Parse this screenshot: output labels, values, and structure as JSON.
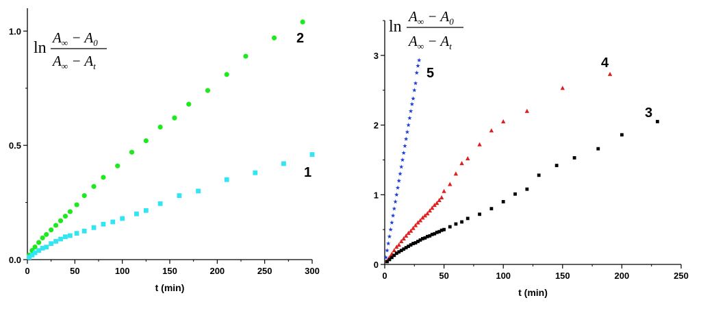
{
  "chart_data": [
    {
      "type": "scatter",
      "xlabel": "t (min)",
      "ylabel": "ln (A∞ − A0)/(A∞ − At)",
      "xlim": [
        0,
        300
      ],
      "ylim": [
        0,
        1.1
      ],
      "x_ticks": [
        "0",
        "50",
        "100",
        "150",
        "200",
        "250",
        "300"
      ],
      "y_ticks": [
        "0.0",
        "0.5",
        "1.0"
      ],
      "y_tick_values": [
        0,
        0.5,
        1.0
      ],
      "x_tick_values": [
        0,
        50,
        100,
        150,
        200,
        250,
        300
      ],
      "grid": false,
      "series": [
        {
          "label": "2",
          "color": "#1ee81e",
          "marker": "circle",
          "x": [
            2,
            5,
            8,
            12,
            16,
            20,
            25,
            30,
            35,
            40,
            45,
            52,
            60,
            70,
            80,
            95,
            110,
            125,
            140,
            155,
            170,
            190,
            210,
            230,
            260,
            290
          ],
          "y": [
            0.02,
            0.04,
            0.055,
            0.075,
            0.095,
            0.11,
            0.13,
            0.15,
            0.17,
            0.19,
            0.21,
            0.24,
            0.28,
            0.32,
            0.36,
            0.41,
            0.47,
            0.52,
            0.58,
            0.62,
            0.68,
            0.74,
            0.81,
            0.89,
            0.97,
            1.04
          ]
        },
        {
          "label": "1",
          "color": "#33e5f2",
          "marker": "square",
          "x": [
            2,
            5,
            8,
            12,
            16,
            20,
            25,
            30,
            35,
            40,
            45,
            52,
            60,
            70,
            80,
            90,
            100,
            115,
            125,
            140,
            160,
            180,
            210,
            240,
            270,
            300
          ],
          "y": [
            0.01,
            0.02,
            0.03,
            0.04,
            0.05,
            0.055,
            0.07,
            0.08,
            0.09,
            0.1,
            0.105,
            0.115,
            0.125,
            0.14,
            0.155,
            0.165,
            0.18,
            0.2,
            0.215,
            0.245,
            0.28,
            0.3,
            0.35,
            0.38,
            0.42,
            0.46
          ]
        }
      ]
    },
    {
      "type": "scatter",
      "xlabel": "t (min)",
      "ylabel": "ln (A∞ − A0)/(A∞ − At)",
      "xlim": [
        0,
        250
      ],
      "ylim": [
        0,
        3.5
      ],
      "x_ticks": [
        "0",
        "50",
        "100",
        "150",
        "200",
        "250"
      ],
      "y_ticks": [
        "0",
        "1",
        "2",
        "3"
      ],
      "y_tick_values": [
        0,
        1,
        2,
        3
      ],
      "x_tick_values": [
        0,
        50,
        100,
        150,
        200,
        250
      ],
      "grid": false,
      "series": [
        {
          "label": "5",
          "color": "#1f3fd9",
          "marker": "star",
          "x": [
            1,
            2,
            3,
            4,
            5,
            6,
            7,
            8,
            9,
            10,
            11,
            12,
            13,
            14,
            15,
            16,
            17,
            18,
            19,
            20,
            21,
            22,
            23,
            24,
            25,
            26,
            27,
            28,
            29
          ],
          "y": [
            0.1,
            0.2,
            0.3,
            0.4,
            0.5,
            0.6,
            0.7,
            0.8,
            0.9,
            1.0,
            1.1,
            1.2,
            1.3,
            1.4,
            1.5,
            1.6,
            1.7,
            1.8,
            1.9,
            2.0,
            2.1,
            2.2,
            2.3,
            2.38,
            2.5,
            2.6,
            2.75,
            2.85,
            2.93
          ]
        },
        {
          "label": "4",
          "color": "#e02020",
          "marker": "triangle",
          "x": [
            2,
            4,
            6,
            8,
            10,
            12,
            14,
            16,
            18,
            20,
            22,
            24,
            26,
            28,
            30,
            32,
            34,
            36,
            38,
            40,
            42,
            44,
            46,
            48,
            50,
            55,
            60,
            65,
            70,
            80,
            90,
            100,
            120,
            150,
            190
          ],
          "y": [
            0.05,
            0.1,
            0.15,
            0.2,
            0.25,
            0.28,
            0.33,
            0.37,
            0.41,
            0.45,
            0.48,
            0.52,
            0.56,
            0.6,
            0.63,
            0.67,
            0.7,
            0.73,
            0.77,
            0.81,
            0.85,
            0.88,
            0.92,
            0.96,
            1.05,
            1.15,
            1.3,
            1.45,
            1.52,
            1.72,
            1.92,
            2.05,
            2.2,
            2.53,
            2.73
          ]
        },
        {
          "label": "3",
          "color": "#000000",
          "marker": "square",
          "x": [
            2,
            4,
            6,
            8,
            10,
            12,
            14,
            16,
            18,
            20,
            22,
            24,
            26,
            28,
            30,
            32,
            34,
            36,
            38,
            40,
            42,
            44,
            46,
            48,
            50,
            55,
            60,
            65,
            70,
            80,
            90,
            100,
            110,
            120,
            130,
            145,
            160,
            180,
            200,
            230
          ],
          "y": [
            0.04,
            0.07,
            0.1,
            0.13,
            0.16,
            0.18,
            0.2,
            0.22,
            0.24,
            0.26,
            0.28,
            0.3,
            0.31,
            0.33,
            0.35,
            0.37,
            0.38,
            0.4,
            0.41,
            0.43,
            0.44,
            0.46,
            0.47,
            0.49,
            0.5,
            0.54,
            0.58,
            0.61,
            0.66,
            0.72,
            0.8,
            0.9,
            1.01,
            1.08,
            1.28,
            1.42,
            1.53,
            1.66,
            1.86,
            2.05
          ]
        }
      ]
    }
  ]
}
